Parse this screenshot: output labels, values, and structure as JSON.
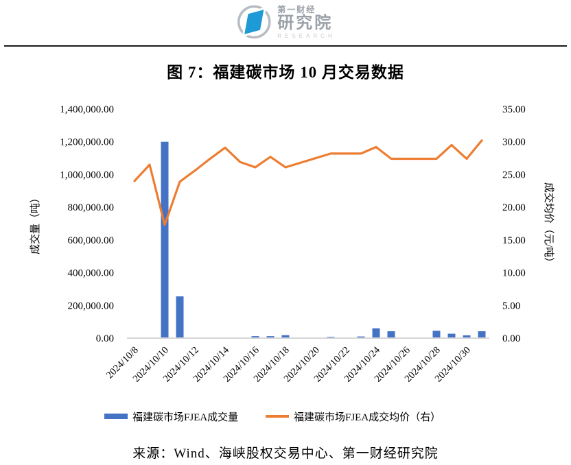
{
  "logo": {
    "line1": "第一财经",
    "line2": "研究院",
    "line3": "RESEARCH"
  },
  "figure": {
    "title": "图 7：福建碳市场 10 月交易数据",
    "source": "来源：Wind、海峡股权交易中心、第一财经研究院"
  },
  "colors": {
    "bar": "#4472C4",
    "line": "#ED7D31",
    "axis_line": "#d6d6d6",
    "text": "#000000",
    "logo_blue": "#1f9ad6",
    "logo_gray": "#b6bcc2"
  },
  "chart_data": {
    "type": "bar",
    "subtype": "combo-bar-line-dual-axis",
    "title": "图 7：福建碳市场 10 月交易数据",
    "gridlines": false,
    "legend_position": "bottom",
    "categories": [
      "2024/10/8",
      "2024/10/9",
      "2024/10/10",
      "2024/10/11",
      "2024/10/12",
      "2024/10/13",
      "2024/10/14",
      "2024/10/15",
      "2024/10/16",
      "2024/10/17",
      "2024/10/18",
      "2024/10/19",
      "2024/10/20",
      "2024/10/21",
      "2024/10/22",
      "2024/10/23",
      "2024/10/24",
      "2024/10/25",
      "2024/10/26",
      "2024/10/27",
      "2024/10/28",
      "2024/10/29",
      "2024/10/30",
      "2024/10/31"
    ],
    "x_label_every": 2,
    "series": [
      {
        "name": "福建碳市场FJEA成交量",
        "type": "bar",
        "axis": "left",
        "color": "#4472C4",
        "values": [
          0,
          0,
          1200000,
          255000,
          0,
          0,
          0,
          0,
          12000,
          12000,
          18000,
          0,
          0,
          8000,
          0,
          10000,
          60000,
          42000,
          0,
          0,
          45000,
          27000,
          17000,
          42000
        ]
      },
      {
        "name": "福建碳市场FJEA成交均价（右）",
        "type": "line",
        "axis": "right",
        "color": "#ED7D31",
        "values": [
          24.0,
          26.5,
          17.3,
          23.9,
          25.6,
          27.4,
          29.1,
          26.9,
          26.1,
          27.7,
          26.1,
          26.8,
          27.5,
          28.2,
          28.2,
          28.2,
          29.2,
          27.4,
          27.4,
          27.4,
          27.4,
          29.5,
          27.4,
          30.2
        ]
      }
    ],
    "left_axis": {
      "title": "成交量（吨）",
      "min": 0,
      "max": 1400000,
      "ticks": [
        "1,400,000.00",
        "1,200,000.00",
        "1,000,000.00",
        "800,000.00",
        "600,000.00",
        "400,000.00",
        "200,000.00",
        "0.00"
      ]
    },
    "right_axis": {
      "title": "成交均价（元/吨）",
      "min": 0,
      "max": 35,
      "ticks": [
        "35.00",
        "30.00",
        "25.00",
        "20.00",
        "15.00",
        "10.00",
        "5.00",
        "0.00"
      ]
    }
  }
}
